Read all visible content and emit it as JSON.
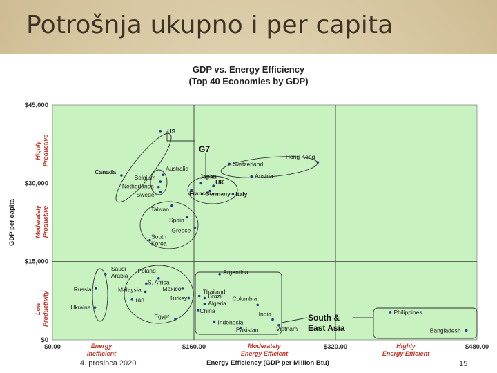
{
  "slide": {
    "title": "Potrošnja ukupno i per capita",
    "footer_date": "4. prosinca 2020.",
    "slide_number": "15"
  },
  "colors": {
    "plot_bg": "#c8f2c0",
    "point": "#1f3a93",
    "category_text": "#c0392b",
    "ellipse": "#333333"
  },
  "chart_data": {
    "type": "scatter",
    "title": "GDP vs. Energy Efficiency",
    "subtitle": "(Top 40 Economies by GDP)",
    "xlabel": "Energy Efficiency (GDP per Million Btu)",
    "ylabel": "GDP per capita",
    "xlim": [
      0,
      480
    ],
    "ylim": [
      0,
      45000
    ],
    "x_ticks": [
      "$0.00",
      "$160.00",
      "$320.00",
      "$480.00"
    ],
    "y_ticks": [
      "$0",
      "$15,000",
      "$30,000",
      "$45,000"
    ],
    "grid": "dividers at x=160, x=320, y=15000",
    "x_categories": [
      "Energy Inefficient",
      "Moderately Energy Efficient",
      "Highly Energy Efficient"
    ],
    "y_categories": [
      "Low Productivity",
      "Moderately Productive",
      "Highly Productive"
    ],
    "group_labels": [
      "G7",
      "South & East Asia"
    ],
    "points": [
      {
        "label": "US",
        "x": 122,
        "y": 40000
      },
      {
        "label": "Canada",
        "x": 78,
        "y": 31500
      },
      {
        "label": "Belgium",
        "x": 122,
        "y": 30300
      },
      {
        "label": "Australia",
        "x": 125,
        "y": 31600
      },
      {
        "label": "Netherlands",
        "x": 120,
        "y": 29300
      },
      {
        "label": "Sweden",
        "x": 122,
        "y": 28300
      },
      {
        "label": "Japan",
        "x": 168,
        "y": 30000
      },
      {
        "label": "UK",
        "x": 182,
        "y": 29500
      },
      {
        "label": "Germany",
        "x": 178,
        "y": 28500
      },
      {
        "label": "France",
        "x": 157,
        "y": 28700
      },
      {
        "label": "Italy",
        "x": 204,
        "y": 27900
      },
      {
        "label": "Switzerland",
        "x": 200,
        "y": 33700
      },
      {
        "label": "Hong Kong",
        "x": 300,
        "y": 34000
      },
      {
        "label": "Austria",
        "x": 225,
        "y": 31300
      },
      {
        "label": "Taiwan",
        "x": 135,
        "y": 25700
      },
      {
        "label": "Spain",
        "x": 152,
        "y": 23500
      },
      {
        "label": "Greece",
        "x": 161,
        "y": 21500
      },
      {
        "label": "South Korea",
        "x": 110,
        "y": 19100
      },
      {
        "label": "Saudi Arabia",
        "x": 60,
        "y": 12600
      },
      {
        "label": "Russia",
        "x": 49,
        "y": 9800
      },
      {
        "label": "Ukraine",
        "x": 48,
        "y": 6200
      },
      {
        "label": "Poland",
        "x": 120,
        "y": 11800
      },
      {
        "label": "S. Africa",
        "x": 106,
        "y": 10800
      },
      {
        "label": "Mexico",
        "x": 147,
        "y": 9800
      },
      {
        "label": "Malaysia",
        "x": 105,
        "y": 9200
      },
      {
        "label": "Iran",
        "x": 90,
        "y": 7700
      },
      {
        "label": "Turkey",
        "x": 154,
        "y": 8000
      },
      {
        "label": "Egypt",
        "x": 139,
        "y": 4000
      },
      {
        "label": "Argentina",
        "x": 189,
        "y": 12600
      },
      {
        "label": "Thailand",
        "x": 166,
        "y": 8400
      },
      {
        "label": "Brazil",
        "x": 172,
        "y": 8000
      },
      {
        "label": "Algeria",
        "x": 172,
        "y": 6900
      },
      {
        "label": "Columbia",
        "x": 232,
        "y": 6700
      },
      {
        "label": "China",
        "x": 165,
        "y": 5700
      },
      {
        "label": "Indonesia",
        "x": 183,
        "y": 3500
      },
      {
        "label": "India",
        "x": 249,
        "y": 3900
      },
      {
        "label": "Pakistan",
        "x": 213,
        "y": 2300
      },
      {
        "label": "Vietnam",
        "x": 256,
        "y": 2800
      },
      {
        "label": "Philippines",
        "x": 382,
        "y": 5300
      },
      {
        "label": "Bangladesh",
        "x": 468,
        "y": 1800
      }
    ]
  }
}
